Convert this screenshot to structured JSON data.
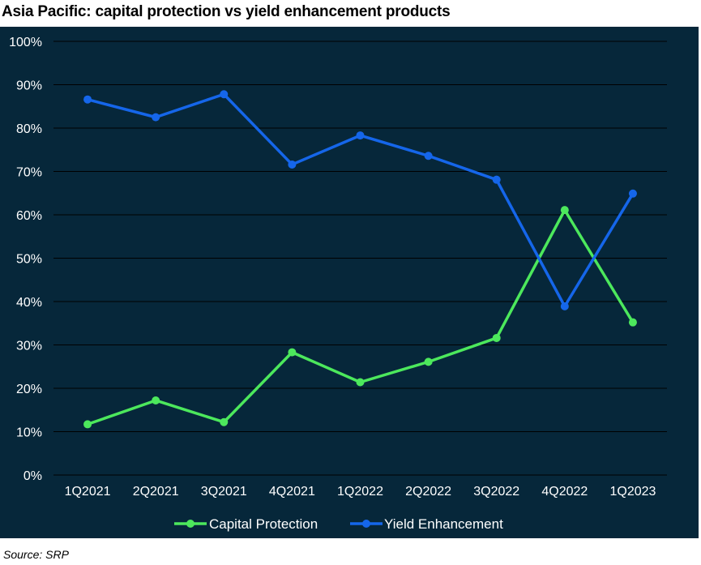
{
  "title": "Asia Pacific: capital protection vs yield enhancement products",
  "source": "Source: SRP",
  "colors": {
    "background": "#06273a",
    "grid": "#000000",
    "text": "#ffffff",
    "capital_protection": "#4ce85c",
    "yield_enhancement": "#1566ea"
  },
  "chart_data": {
    "type": "line",
    "title": "Asia Pacific: capital protection vs yield enhancement products",
    "xlabel": "",
    "ylabel": "",
    "ylim": [
      0,
      100
    ],
    "grid": true,
    "legend": "bottom",
    "y_ticks": [
      "0%",
      "10%",
      "20%",
      "30%",
      "40%",
      "50%",
      "60%",
      "70%",
      "80%",
      "90%",
      "100%"
    ],
    "categories": [
      "1Q2021",
      "2Q2021",
      "3Q2021",
      "4Q2021",
      "1Q2022",
      "2Q2022",
      "3Q2022",
      "4Q2022",
      "1Q2023"
    ],
    "series": [
      {
        "name": "Capital Protection",
        "color": "#4ce85c",
        "values": [
          11.7,
          17.2,
          12.2,
          28.3,
          21.4,
          26.1,
          31.6,
          61.1,
          35.2
        ]
      },
      {
        "name": "Yield Enhancement",
        "color": "#1566ea",
        "values": [
          86.6,
          82.5,
          87.8,
          71.6,
          78.3,
          73.6,
          68.1,
          38.9,
          64.9
        ]
      }
    ]
  }
}
